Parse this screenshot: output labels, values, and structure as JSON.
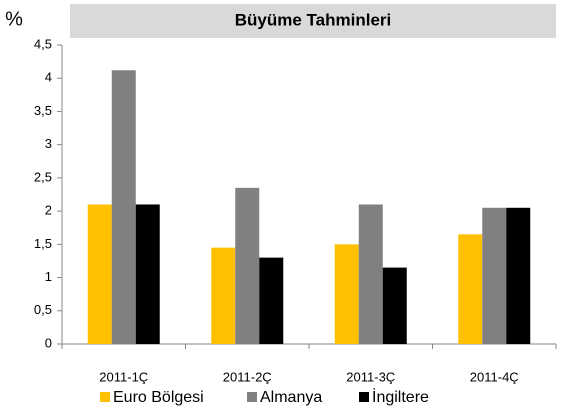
{
  "chart_data": {
    "type": "bar",
    "title": "Büyüme Tahminleri",
    "y_label": "%",
    "categories": [
      "2011-1Ç",
      "2011-2Ç",
      "2011-3Ç",
      "2011-4Ç"
    ],
    "series": [
      {
        "name": "Euro Bölgesi",
        "color": "#ffc000",
        "values": [
          2.1,
          1.45,
          1.5,
          1.65
        ]
      },
      {
        "name": "Almanya",
        "color": "#808080",
        "values": [
          4.12,
          2.35,
          2.1,
          2.05
        ]
      },
      {
        "name": "İngiltere",
        "color": "#000000",
        "values": [
          2.1,
          1.3,
          1.15,
          2.05
        ]
      }
    ],
    "ylim": [
      0,
      4.5
    ],
    "yticks": [
      0,
      {
        "value": 0.5,
        "label": "0,5"
      },
      1,
      {
        "value": 1.5,
        "label": "1,5"
      },
      2,
      {
        "value": 2.5,
        "label": "2,5"
      },
      3,
      {
        "value": 3.5,
        "label": "3,5"
      },
      4,
      {
        "value": 4.5,
        "label": "4,5"
      }
    ],
    "grid": false,
    "legend": "bottom"
  }
}
